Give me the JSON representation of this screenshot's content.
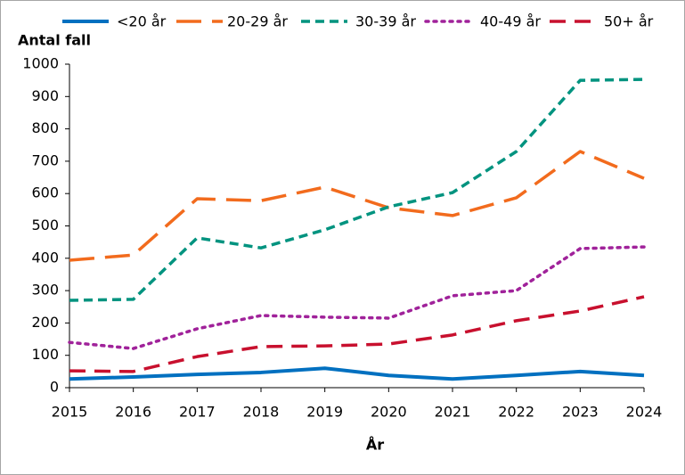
{
  "chart_data": {
    "type": "line",
    "y_label": "Antal fall",
    "x_label": "År",
    "x": [
      2015,
      2016,
      2017,
      2018,
      2019,
      2020,
      2021,
      2022,
      2023,
      2024
    ],
    "series": [
      {
        "name": "<20 år",
        "color": "#0070c0",
        "values": [
          27,
          33,
          41,
          47,
          60,
          38,
          27,
          38,
          50,
          38
        ]
      },
      {
        "name": "20-29 år",
        "color": "#f26b1d",
        "values": [
          394,
          410,
          584,
          578,
          620,
          556,
          532,
          587,
          730,
          647
        ]
      },
      {
        "name": "30-39 år",
        "color": "#00937f",
        "values": [
          270,
          273,
          463,
          432,
          488,
          559,
          603,
          730,
          950,
          953
        ]
      },
      {
        "name": "40-49 år",
        "color": "#a0229a",
        "values": [
          140,
          121,
          182,
          223,
          218,
          215,
          284,
          300,
          430,
          435
        ]
      },
      {
        "name": "50+ år",
        "color": "#c8102e",
        "values": [
          52,
          50,
          96,
          127,
          129,
          135,
          163,
          207,
          237,
          281
        ]
      }
    ],
    "xlim": [
      2015,
      2024
    ],
    "xticks": [
      2015,
      2016,
      2017,
      2018,
      2019,
      2020,
      2021,
      2022,
      2023,
      2024
    ],
    "ylim": [
      0,
      1000
    ],
    "yticks": [
      0,
      100,
      200,
      300,
      400,
      500,
      600,
      700,
      800,
      900,
      1000
    ],
    "grid": false,
    "legend": "top"
  }
}
